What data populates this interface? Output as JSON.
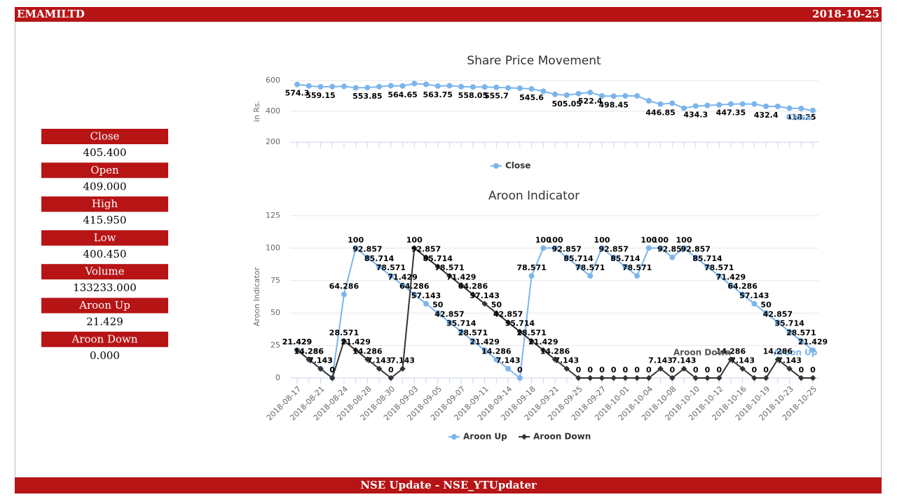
{
  "header": {
    "title": "EMAMILTD",
    "date": "2018-10-25"
  },
  "sidebar": [
    {
      "label": "Close",
      "value": "405.400"
    },
    {
      "label": "Open",
      "value": "409.000"
    },
    {
      "label": "High",
      "value": "415.950"
    },
    {
      "label": "Low",
      "value": "400.450"
    },
    {
      "label": "Volume",
      "value": "133233.000"
    },
    {
      "label": "Aroon Up",
      "value": "21.429"
    },
    {
      "label": "Aroon Down",
      "value": "0.000"
    }
  ],
  "chart_data": [
    {
      "type": "line",
      "title": "Share Price Movement",
      "y_label": "in Rs.",
      "ylim": [
        200,
        600
      ],
      "yticks": [
        200,
        400,
        600
      ],
      "grid": true,
      "legend": "bottom",
      "series": [
        {
          "name": "Close",
          "color": "#7cb5ec",
          "values": [
            574.3,
            565,
            559.15,
            560,
            562,
            553,
            553.85,
            560,
            566,
            564.65,
            580,
            575,
            563.75,
            566,
            560,
            558.05,
            558,
            555.7,
            552,
            550,
            545.6,
            530,
            510,
            505.05,
            515,
            522.4,
            500,
            498.45,
            500,
            500,
            468,
            446.85,
            452,
            420,
            434.3,
            438,
            442,
            447.35,
            448,
            447,
            432.4,
            432,
            420,
            418.25,
            405.4
          ],
          "value_labels": [
            "574.3",
            null,
            "559.15",
            null,
            null,
            null,
            "553.85",
            null,
            null,
            "564.65",
            null,
            null,
            "563.75",
            null,
            null,
            "558.05",
            null,
            "555.7",
            null,
            null,
            "545.6",
            null,
            null,
            "505.05",
            null,
            "522.4",
            null,
            "498.45",
            null,
            null,
            null,
            "446.85",
            null,
            null,
            "434.3",
            null,
            null,
            "447.35",
            null,
            null,
            "432.4",
            null,
            null,
            "418.25",
            null
          ]
        }
      ]
    },
    {
      "type": "line",
      "title": "Aroon Indicator",
      "y_label": "Aroon Indicator",
      "ylim": [
        0,
        125
      ],
      "yticks": [
        0,
        25,
        50,
        75,
        100,
        125
      ],
      "grid": true,
      "legend": "bottom",
      "categories": [
        "2018-08-17",
        null,
        "2018-08-21",
        null,
        "2018-08-24",
        null,
        "2018-08-28",
        null,
        "2018-08-30",
        null,
        "2018-09-03",
        null,
        "2018-09-05",
        null,
        "2018-09-07",
        null,
        "2018-09-11",
        null,
        "2018-09-14",
        null,
        "2018-09-18",
        null,
        "2018-09-21",
        null,
        "2018-09-25",
        null,
        "2018-09-27",
        null,
        "2018-10-01",
        null,
        "2018-10-04",
        null,
        "2018-10-08",
        null,
        "2018-10-10",
        null,
        "2018-10-12",
        null,
        "2018-10-16",
        null,
        "2018-10-19",
        null,
        "2018-10-23",
        null,
        "2018-10-25"
      ],
      "series": [
        {
          "name": "Aroon Up",
          "color": "#7cb5ec",
          "values": [
            21.429,
            14.286,
            7.143,
            0,
            64.286,
            100,
            92.857,
            85.714,
            78.571,
            71.429,
            64.286,
            57.143,
            50,
            42.857,
            35.714,
            28.571,
            21.429,
            14.286,
            7.143,
            0,
            78.571,
            100,
            100,
            92.857,
            85.714,
            78.571,
            100,
            92.857,
            85.714,
            78.571,
            100,
            100,
            92.857,
            100,
            92.857,
            85.714,
            78.571,
            71.429,
            64.286,
            57.143,
            50,
            42.857,
            35.714,
            28.571,
            21.429
          ]
        },
        {
          "name": "Aroon Down",
          "color": "#333333",
          "values": [
            21.429,
            14.286,
            7.143,
            0,
            28.571,
            21.429,
            14.286,
            7.143,
            0,
            7.143,
            100,
            92.857,
            85.714,
            78.571,
            71.429,
            64.286,
            57.143,
            50,
            42.857,
            35.714,
            28.571,
            21.429,
            14.286,
            7.143,
            0,
            0,
            0,
            0,
            0,
            0,
            0,
            7.143,
            0,
            7.143,
            0,
            0,
            0,
            14.286,
            7.143,
            0,
            0,
            14.286,
            7.143,
            0,
            0
          ]
        }
      ]
    }
  ],
  "footer": {
    "text": "NSE Update - NSE_YTUpdater"
  }
}
